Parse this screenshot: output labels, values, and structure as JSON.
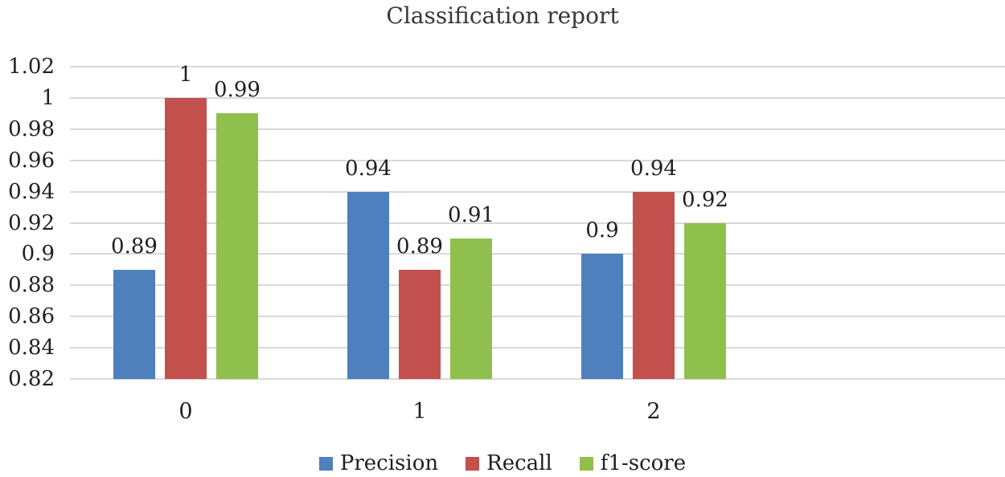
{
  "chart_data": {
    "type": "bar",
    "title": "Classification report",
    "categories": [
      "0",
      "1",
      "2"
    ],
    "series": [
      {
        "name": "Precision",
        "color": "#4E80BD",
        "values": [
          0.89,
          0.94,
          0.9
        ],
        "value_labels": [
          "0.89",
          "0.94",
          "0.9"
        ]
      },
      {
        "name": "Recall",
        "color": "#C2504D",
        "values": [
          1.0,
          0.89,
          0.94
        ],
        "value_labels": [
          "1",
          "0.89",
          "0.94"
        ]
      },
      {
        "name": "f1-score",
        "color": "#8FC04D",
        "values": [
          0.99,
          0.91,
          0.92
        ],
        "value_labels": [
          "0.99",
          "0.91",
          "0.92"
        ]
      }
    ],
    "ylim": [
      0.82,
      1.02
    ],
    "ytick_step": 0.02,
    "ytick_labels": [
      "1.02",
      "1",
      "0.98",
      "0.96",
      "0.94",
      "0.92",
      "0.9",
      "0.88",
      "0.86",
      "0.84",
      "0.82"
    ],
    "grid": "horizontal",
    "gridline_color": "#D9D9D9",
    "legend_position": "bottom",
    "text_color": "#1F1F1F"
  }
}
